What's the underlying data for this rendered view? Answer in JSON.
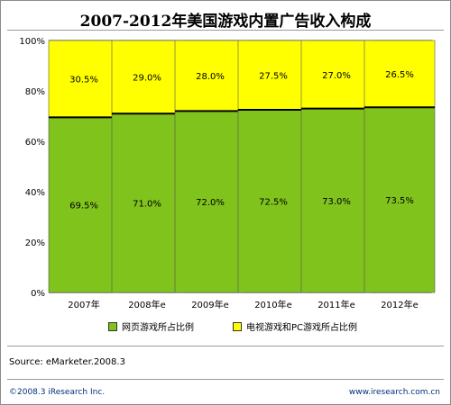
{
  "title": "2007-2012年美国游戏内置广告收入构成",
  "chart_data": {
    "type": "bar",
    "stacked": true,
    "categories": [
      "2007年",
      "2008年e",
      "2009年e",
      "2010年e",
      "2011年e",
      "2012年e"
    ],
    "series": [
      {
        "name": "网页游戏所占比例",
        "values": [
          69.5,
          71.0,
          72.0,
          72.5,
          73.0,
          73.5
        ],
        "labels": [
          "69.5%",
          "71.0%",
          "72.0%",
          "72.5%",
          "73.0%",
          "73.5%"
        ],
        "color": "#80c31c"
      },
      {
        "name": "电视游戏和PC游戏所占比例",
        "values": [
          30.5,
          29.0,
          28.0,
          27.5,
          27.0,
          26.5
        ],
        "labels": [
          "30.5%",
          "29.0%",
          "28.0%",
          "27.5%",
          "27.0%",
          "26.5%"
        ],
        "color": "#ffff00"
      }
    ],
    "ylim": [
      0,
      100
    ],
    "yticks": [
      "0%",
      "20%",
      "40%",
      "60%",
      "80%",
      "100%"
    ],
    "grid": false,
    "legend_position": "bottom"
  },
  "source": "Source:  eMarketer.2008.3",
  "footer": {
    "left": "©2008.3  iResearch Inc.",
    "right": "www.iresearch.com.cn"
  }
}
